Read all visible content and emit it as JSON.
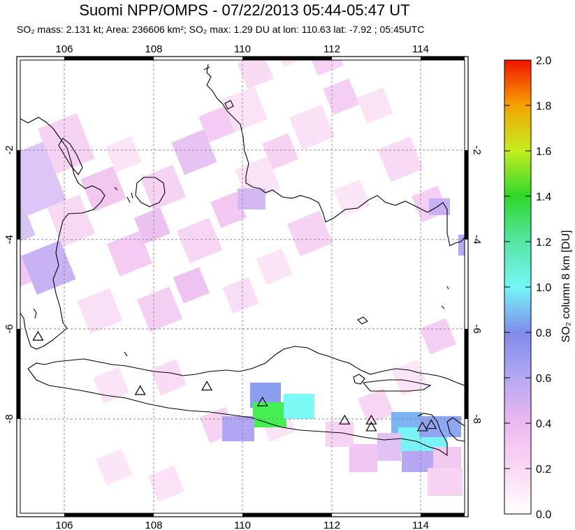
{
  "header": {
    "title": "Suomi NPP/OMPS - 07/22/2013 05:44-05:47 UT",
    "subtitle": "SO₂ mass: 2.131 kt; Area: 236606 km²; SO₂ max: 1.29 DU at lon: 110.63 lat: -7.92 ; 05:45UTC"
  },
  "map": {
    "lon_range": [
      105,
      115
    ],
    "lat_range": [
      -10,
      0
    ],
    "lon_ticks": [
      "106",
      "108",
      "110",
      "112",
      "114"
    ],
    "lat_ticks_left": [
      "-2",
      "-4",
      "-6",
      "-8"
    ],
    "lat_ticks_right": [
      "-2",
      "-4",
      "-6",
      "-8"
    ],
    "volcano_markers": [
      {
        "lon": 105.4,
        "lat": -6.1
      },
      {
        "lon": 107.7,
        "lat": -7.3
      },
      {
        "lon": 109.2,
        "lat": -7.2
      },
      {
        "lon": 110.45,
        "lat": -7.55
      },
      {
        "lon": 112.3,
        "lat": -7.95
      },
      {
        "lon": 112.9,
        "lat": -7.95
      },
      {
        "lon": 112.9,
        "lat": -8.1
      },
      {
        "lon": 114.05,
        "lat": -8.1
      },
      {
        "lon": 114.25,
        "lat": -8.05
      }
    ]
  },
  "colorbar": {
    "label": "SO₂ column 8 km [DU]",
    "ticks": [
      "0.0",
      "0.2",
      "0.4",
      "0.6",
      "0.8",
      "1.0",
      "1.2",
      "1.4",
      "1.6",
      "1.8",
      "2.0"
    ],
    "min": 0.0,
    "max": 2.0
  },
  "colors": {
    "low": "#ffffff",
    "pale_pink": "#fbdcf4",
    "pink": "#f4c4ee",
    "violet": "#c9b4f5",
    "blue": "#8aa0ef",
    "cyan": "#7cfbf4",
    "green": "#45ef52"
  }
}
